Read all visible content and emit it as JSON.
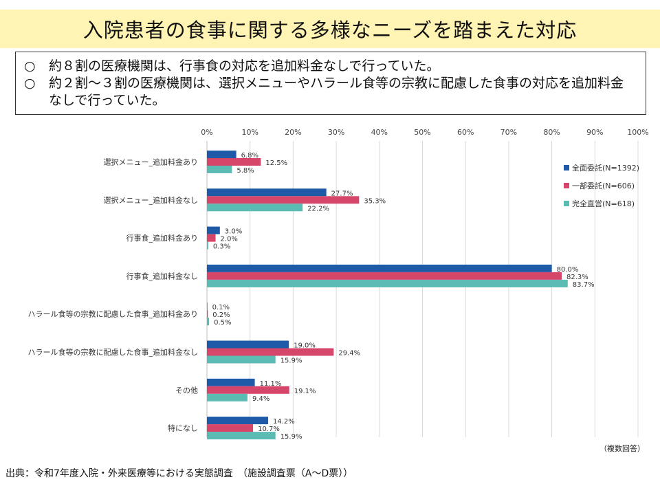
{
  "header": {
    "title": "入院患者の食事に関する多様なニーズを踏まえた対応"
  },
  "summary": {
    "bullets": [
      {
        "mark": "○",
        "text": "約８割の医療機関は、行事食の対応を追加料金なしで行っていた。"
      },
      {
        "mark": "○",
        "text": "約２割～３割の医療機関は、選択メニューやハラール食等の宗教に配慮した食事の対応を追加料金なしで行っていた。"
      }
    ]
  },
  "chart_data": {
    "type": "bar",
    "orientation": "horizontal",
    "xlim": [
      0,
      100
    ],
    "x_ticks": [
      "0%",
      "10%",
      "20%",
      "30%",
      "40%",
      "50%",
      "60%",
      "70%",
      "80%",
      "90%",
      "100%"
    ],
    "grid": true,
    "legend_position": "right",
    "categories": [
      "選択メニュー_追加料金あり",
      "選択メニュー_追加料金なし",
      "行事食_追加料金あり",
      "行事食_追加料金なし",
      "ハラール食等の宗教に配慮した食事_追加料金あり",
      "ハラール食等の宗教に配慮した食事_追加料金なし",
      "その他",
      "特になし"
    ],
    "series": [
      {
        "name": "全面委託(N=1392)",
        "color": "#1f5aa8",
        "values": [
          6.8,
          27.7,
          3.0,
          80.0,
          0.1,
          19.0,
          11.1,
          14.2
        ],
        "labels": [
          "6.8%",
          "27.7%",
          "3.0%",
          "80.0%",
          "0.1%",
          "19.0%",
          "11.1%",
          "14.2%"
        ]
      },
      {
        "name": "一部委託(N=606)",
        "color": "#d6466a",
        "values": [
          12.5,
          35.3,
          2.0,
          82.3,
          0.2,
          29.4,
          19.1,
          10.7
        ],
        "labels": [
          "12.5%",
          "35.3%",
          "2.0%",
          "82.3%",
          "0.2%",
          "29.4%",
          "19.1%",
          "10.7%"
        ]
      },
      {
        "name": "完全直営(N=618)",
        "color": "#5bbcb4",
        "values": [
          5.8,
          22.2,
          0.3,
          83.7,
          0.5,
          15.9,
          9.4,
          15.9
        ],
        "labels": [
          "5.8%",
          "22.2%",
          "0.3%",
          "83.7%",
          "0.5%",
          "15.9%",
          "9.4%",
          "15.9%"
        ]
      }
    ]
  },
  "footer": {
    "note": "（複数回答）",
    "source": "出典：令和7年度入院・外来医療等における実態調査　（施設調査票（A～D票））"
  }
}
